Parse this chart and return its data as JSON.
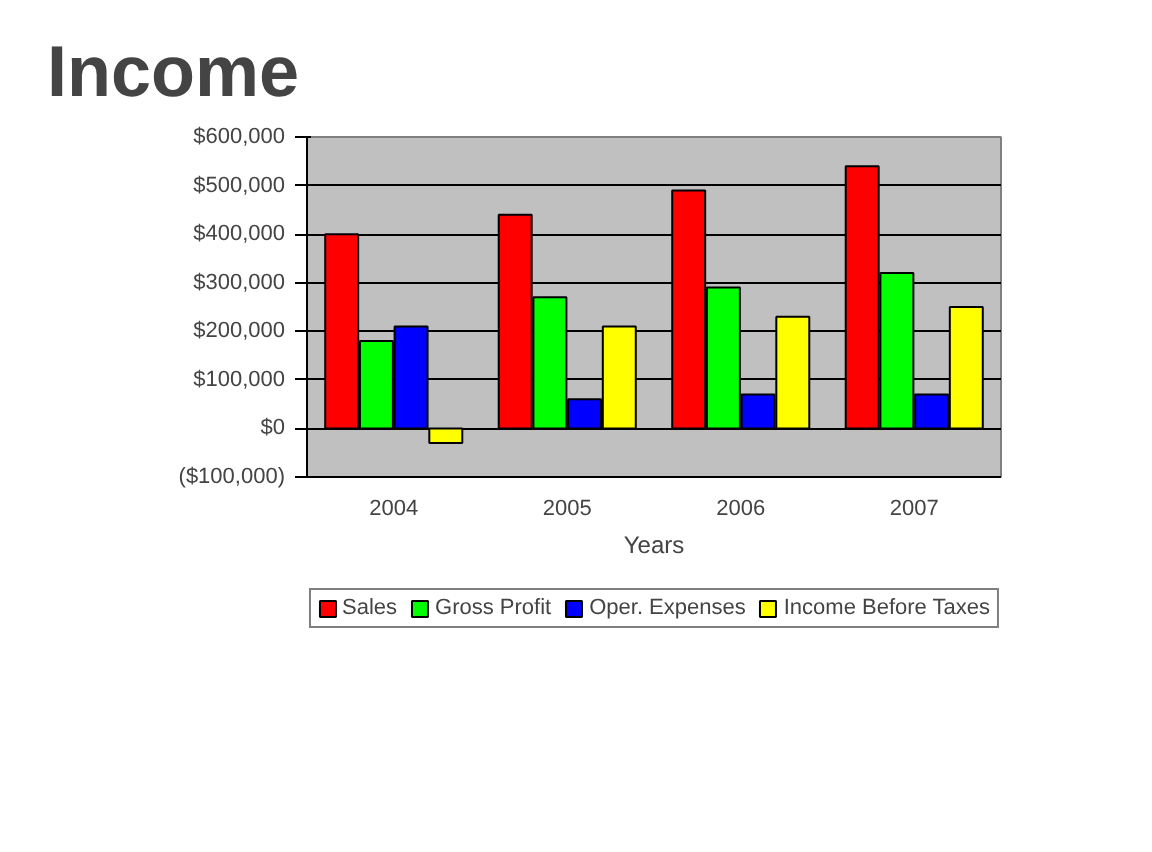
{
  "chart_data": {
    "type": "bar",
    "title": "Income",
    "xlabel": "Years",
    "categories": [
      "2004",
      "2005",
      "2006",
      "2007"
    ],
    "series": [
      {
        "name": "Sales",
        "color": "#ff0000",
        "values": [
          400000,
          440000,
          490000,
          540000
        ]
      },
      {
        "name": "Gross Profit",
        "color": "#00ff00",
        "values": [
          180000,
          270000,
          290000,
          320000
        ]
      },
      {
        "name": "Oper. Expenses",
        "color": "#0000ff",
        "values": [
          210000,
          60000,
          70000,
          70000
        ]
      },
      {
        "name": "Income Before Taxes",
        "color": "#ffff00",
        "values": [
          -30000,
          210000,
          230000,
          250000
        ]
      }
    ],
    "ylim": [
      -100000,
      600000
    ],
    "yticks": [
      {
        "value": -100000,
        "label": "($100,000)"
      },
      {
        "value": 0,
        "label": "$0"
      },
      {
        "value": 100000,
        "label": "$100,000"
      },
      {
        "value": 200000,
        "label": "$200,000"
      },
      {
        "value": 300000,
        "label": "$300,000"
      },
      {
        "value": 400000,
        "label": "$400,000"
      },
      {
        "value": 500000,
        "label": "$500,000"
      },
      {
        "value": 600000,
        "label": "$600,000"
      }
    ],
    "grid": "y",
    "legend": "bottom"
  }
}
